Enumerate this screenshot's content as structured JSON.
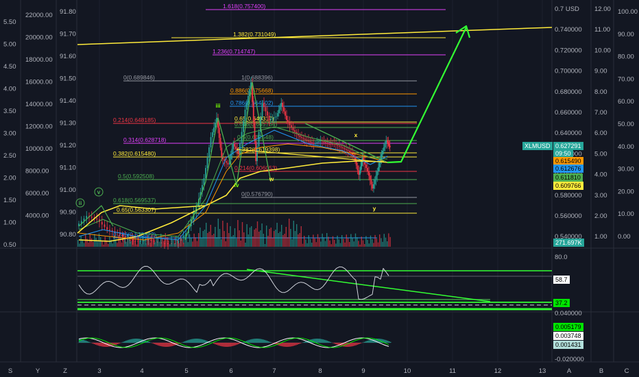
{
  "colors": {
    "background": "#131722",
    "grid": "#1e222d",
    "yellow": "#ffeb3b",
    "green": "#4caf50",
    "bright_green": "#00e600",
    "orange": "#ff9800",
    "red": "#f23645",
    "purple": "#e040fb",
    "blue": "#2962ff",
    "teal": "#26a69a",
    "white": "#d1d4dc"
  },
  "symbol_badge": "XLMUSD",
  "price_badges": [
    {
      "text": "0.627291",
      "color": "#26a69a",
      "fg": "#ffffff"
    },
    {
      "text": "09:50",
      "color": "#26a69a",
      "fg": "#ffffff"
    },
    {
      "text": "0.615490",
      "color": "#ff9800",
      "fg": "#000000"
    },
    {
      "text": "0.612676",
      "color": "#2196f3",
      "fg": "#000000"
    },
    {
      "text": "0.611810",
      "color": "#4caf50",
      "fg": "#000000"
    },
    {
      "text": "0.609766",
      "color": "#ffeb3b",
      "fg": "#000000"
    },
    {
      "text": "271.697K",
      "color": "#26a69a",
      "fg": "#ffffff"
    }
  ],
  "rsi_badges": [
    {
      "text": "58.7",
      "color": "#ffffff",
      "fg": "#000000"
    },
    {
      "text": "37.2",
      "color": "#00e600",
      "fg": "#000000"
    }
  ],
  "macd_badges": [
    {
      "text": "0.005179",
      "color": "#00e600",
      "fg": "#000000"
    },
    {
      "text": "0.003748",
      "color": "#ffffff",
      "fg": "#000000"
    },
    {
      "text": "0.001431",
      "color": "#b2dfdb",
      "fg": "#000000"
    }
  ],
  "left_scale_a": [
    "5.50",
    "5.00",
    "4.50",
    "4.00",
    "3.50",
    "3.00",
    "2.50",
    "2.00",
    "1.50",
    "1.00",
    "0.50"
  ],
  "left_scale_b": [
    "22000.00",
    "20000.00",
    "18000.00",
    "16000.00",
    "14000.00",
    "12000.00",
    "10000.00",
    "8000.00",
    "6000.00",
    "4000.00"
  ],
  "left_scale_c": [
    "91.80",
    "91.70",
    "91.60",
    "91.50",
    "91.40",
    "91.30",
    "91.20",
    "91.10",
    "91.00",
    "90.90",
    "90.80"
  ],
  "right_scale_price": [
    "0.7 USD",
    "0.740000",
    "0.720000",
    "0.700000",
    "0.680000",
    "0.660000",
    "0.640000",
    "0.620000",
    "0.600000",
    "0.580000",
    "0.560000",
    "0.540000"
  ],
  "right_scale_b": [
    "12.00",
    "11.00",
    "10.00",
    "9.00",
    "8.00",
    "7.00",
    "6.00",
    "5.00",
    "4.00",
    "3.00",
    "2.00",
    "1.00"
  ],
  "right_scale_c": [
    "100.00",
    "90.00",
    "80.00",
    "70.00",
    "60.00",
    "50.00",
    "40.00",
    "30.00",
    "20.00",
    "10.00",
    "0.00"
  ],
  "rsi_scale": [
    "80.0"
  ],
  "macd_scale": [
    "0.040000",
    "-0.020000"
  ],
  "x_axis": [
    "3",
    "4",
    "5",
    "6",
    "7",
    "8",
    "9",
    "10",
    "11",
    "12",
    "13"
  ],
  "bottom_left_buttons": [
    "S",
    "Y",
    "Z"
  ],
  "bottom_right_buttons": [
    "A",
    "B",
    "C"
  ],
  "fib_labels": [
    {
      "text": "1.618(0.757400)",
      "color": "#e040fb"
    },
    {
      "text": "1.382(0.731049)",
      "color": "#ffeb3b"
    },
    {
      "text": "1.236(0.714747)",
      "color": "#e040fb"
    },
    {
      "text": "0(0.689846)",
      "color": "#9598a1"
    },
    {
      "text": "1(0.688396)",
      "color": "#9598a1"
    },
    {
      "text": "0.886(0.675668)",
      "color": "#ff9800"
    },
    {
      "text": "0.786(0.664502)",
      "color": "#2196f3"
    },
    {
      "text": "0.214(0.648185)",
      "color": "#f23645"
    },
    {
      "text": "0.65(0.649317)",
      "color": "#ffeb3b"
    },
    {
      "text": "0.618(0.645754)",
      "color": "#4caf50"
    },
    {
      "text": "0.5(0.632548)",
      "color": "#4caf50"
    },
    {
      "text": "0.314(0.628718)",
      "color": "#e040fb"
    },
    {
      "text": "0.382(0.619398)",
      "color": "#ffeb3b"
    },
    {
      "text": "0.382(0.615480)",
      "color": "#ffeb3b"
    },
    {
      "text": "0.214(0.606053)",
      "color": "#f23645"
    },
    {
      "text": "0.5(0.592508)",
      "color": "#4caf50"
    },
    {
      "text": "0(0.576790)",
      "color": "#9598a1"
    },
    {
      "text": "0.618(0.569537)",
      "color": "#4caf50"
    },
    {
      "text": "0.65(0.563307)",
      "color": "#ffeb3b"
    },
    {
      "text": "0.786(0.538822)",
      "color": "#2196f3"
    }
  ],
  "wave_labels": [
    "ii",
    "v",
    "iii",
    "iv",
    "w",
    "x",
    "y"
  ]
}
